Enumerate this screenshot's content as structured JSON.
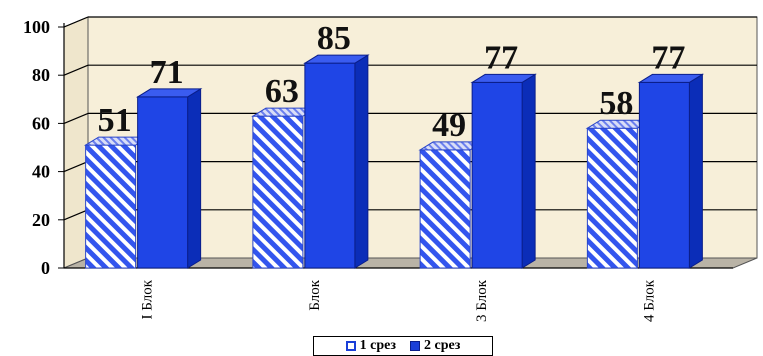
{
  "chart_data": {
    "type": "bar",
    "categories": [
      "I Блок",
      "Блок",
      "3 Блок",
      "4 Блок"
    ],
    "series": [
      {
        "name": "1 срез",
        "values": [
          51,
          63,
          49,
          58
        ]
      },
      {
        "name": "2 срез",
        "values": [
          71,
          85,
          77,
          77
        ]
      }
    ],
    "data_labels": [
      [
        "51",
        "63",
        "49",
        "58"
      ],
      [
        "71",
        "85",
        "77",
        "77"
      ]
    ],
    "y_ticks": [
      "0",
      "20",
      "40",
      "60",
      "80",
      "100"
    ],
    "ylim": [
      0,
      100
    ],
    "grid": true,
    "legend_position": "bottom",
    "colors": {
      "series1_fill": "#ffffff",
      "series1_stripe": "#3355ee",
      "series2_fill": "#1f45e6",
      "series2_side": "#0b2db8",
      "series2_top": "#3a5cf0",
      "wall": "#f7efd9",
      "floor": "#b9b3a6"
    }
  }
}
